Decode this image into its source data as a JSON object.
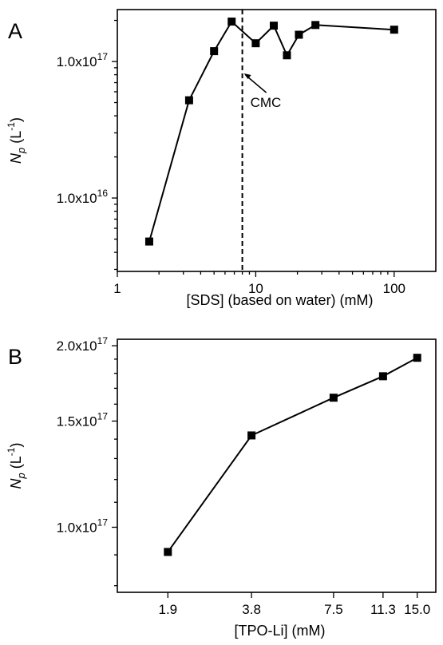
{
  "chart_data": [
    {
      "panel": "A",
      "type": "line",
      "x_scale": "log",
      "y_scale": "log",
      "xlim": [
        1,
        200
      ],
      "ylim": [
        2900000000000000.0,
        2.4e+17
      ],
      "xlabel": "[SDS] (based on water) (mM)",
      "ylabel": {
        "main": "N",
        "sub": "p",
        "unit": "(L",
        "sup": "-1",
        "close": ")"
      },
      "x_ticks": [
        {
          "value": 1,
          "label": "1"
        },
        {
          "value": 10,
          "label": "10"
        },
        {
          "value": 100,
          "label": "100"
        }
      ],
      "y_ticks": [
        {
          "value": 1e+16,
          "base": "1.0x10",
          "exp": "16"
        },
        {
          "value": 1e+17,
          "base": "1.0x10",
          "exp": "17"
        }
      ],
      "x": [
        1.7,
        3.3,
        5.0,
        6.7,
        10.0,
        13.5,
        16.8,
        20.5,
        27.0,
        100.0
      ],
      "y": [
        4800000000000000.0,
        5.2e+16,
        1.19e+17,
        1.96e+17,
        1.36e+17,
        1.83e+17,
        1.11e+17,
        1.57e+17,
        1.85e+17,
        1.71e+17
      ],
      "reference_line": {
        "x": 8.0,
        "label": "CMC"
      },
      "annotation": {
        "text": "CMC",
        "points_to_x": 8.0
      }
    },
    {
      "panel": "B",
      "type": "line",
      "x_scale": "log",
      "y_scale": "log",
      "xlim": [
        1.25,
        17.5
      ],
      "ylim": [
        7.8e+16,
        2.05e+17
      ],
      "xlabel": "[TPO-Li] (mM)",
      "ylabel": {
        "main": "N",
        "sub": "p",
        "unit": "(L",
        "sup": "-1",
        "close": ")"
      },
      "x_ticks": [
        {
          "value": 1.9,
          "label": "1.9"
        },
        {
          "value": 3.8,
          "label": "3.8"
        },
        {
          "value": 7.5,
          "label": "7.5"
        },
        {
          "value": 11.3,
          "label": "11.3"
        },
        {
          "value": 15.0,
          "label": "15.0"
        }
      ],
      "y_ticks": [
        {
          "value": 1e+17,
          "base": "1.0x10",
          "exp": "17"
        },
        {
          "value": 1.5e+17,
          "base": "1.5x10",
          "exp": "17"
        },
        {
          "value": 2e+17,
          "base": "2.0x10",
          "exp": "17"
        }
      ],
      "x": [
        1.9,
        3.8,
        7.5,
        11.3,
        15.0
      ],
      "y": [
        9.1e+16,
        1.42e+17,
        1.64e+17,
        1.78e+17,
        1.91e+17
      ]
    }
  ]
}
